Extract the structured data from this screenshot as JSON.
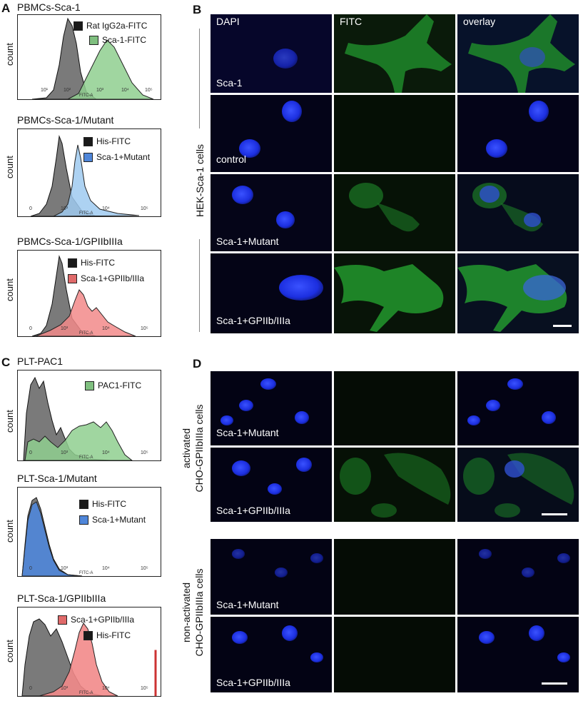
{
  "panels": {
    "A": {
      "letter": "A",
      "histograms": [
        {
          "title": "PBMCs-Sca-1",
          "ylabel": "count",
          "xlabel": "FITC-A",
          "ticks": [
            "10¹",
            "10²",
            "10³",
            "10⁴",
            "10⁵"
          ],
          "legend": [
            {
              "label": "Rat IgG2a-FITC",
              "color": "#1a1a1a"
            },
            {
              "label": "Sca-1-FITC",
              "color": "#7fbf7f"
            }
          ]
        },
        {
          "title": "PBMCs-Sca-1/Mutant",
          "ylabel": "count",
          "xlabel": "FITC-A",
          "ticks": [
            "0",
            "10³",
            "10⁴",
            "10⁵"
          ],
          "legend": [
            {
              "label": "His-FITC",
              "color": "#1a1a1a"
            },
            {
              "label": "Sca-1+Mutant",
              "color": "#4f86d9"
            }
          ]
        },
        {
          "title": "PBMCs-Sca-1/GPIIbIIIa",
          "ylabel": "count",
          "xlabel": "FITC-A",
          "ticks": [
            "0",
            "10³",
            "10⁴",
            "10⁵"
          ],
          "legend": [
            {
              "label": "His-FITC",
              "color": "#1a1a1a"
            },
            {
              "label": "Sca-1+GPIIb/IIIa",
              "color": "#e06a6a"
            }
          ]
        }
      ]
    },
    "B": {
      "letter": "B",
      "columns": [
        "DAPI",
        "FITC",
        "overlay"
      ],
      "side_label": "HEK-Sca-1 cells",
      "rows": [
        "Sca-1",
        "control",
        "Sca-1+Mutant",
        "Sca-1+GPIIb/IIIa"
      ]
    },
    "C": {
      "letter": "C",
      "histograms": [
        {
          "title": "PLT-PAC1",
          "ylabel": "count",
          "xlabel": "FITC-A",
          "ticks": [
            "0",
            "10³",
            "10⁴",
            "10⁵"
          ],
          "legend": [
            {
              "label": "PAC1-FITC",
              "color": "#7fbf7f"
            }
          ]
        },
        {
          "title": "PLT-Sca-1/Mutant",
          "ylabel": "count",
          "xlabel": "FITC-A",
          "ticks": [
            "0",
            "10³",
            "10⁴",
            "10⁵"
          ],
          "legend": [
            {
              "label": "His-FITC",
              "color": "#1a1a1a"
            },
            {
              "label": "Sca-1+Mutant",
              "color": "#4f86d9"
            }
          ]
        },
        {
          "title": "PLT-Sca-1/GPIIbIIIa",
          "ylabel": "count",
          "xlabel": "FITC-A",
          "ticks": [
            "0",
            "10³",
            "10⁴",
            "10⁵"
          ],
          "legend": [
            {
              "label": "Sca-1+GPIIb/IIIa",
              "color": "#e06a6a"
            },
            {
              "label": "His-FITC",
              "color": "#1a1a1a"
            }
          ]
        }
      ]
    },
    "D": {
      "letter": "D",
      "group1_label_line1": "activated",
      "group1_label_line2": "CHO-GPIIbIIIa cells",
      "group2_label_line1": "non-activated",
      "group2_label_line2": "CHO-GPIIbIIIa cells",
      "rows": [
        "Sca-1+Mutant",
        "Sca-1+GPIIb/IIIa",
        "Sca-1+Mutant",
        "Sca-1+GPIIb/IIIa"
      ]
    }
  }
}
